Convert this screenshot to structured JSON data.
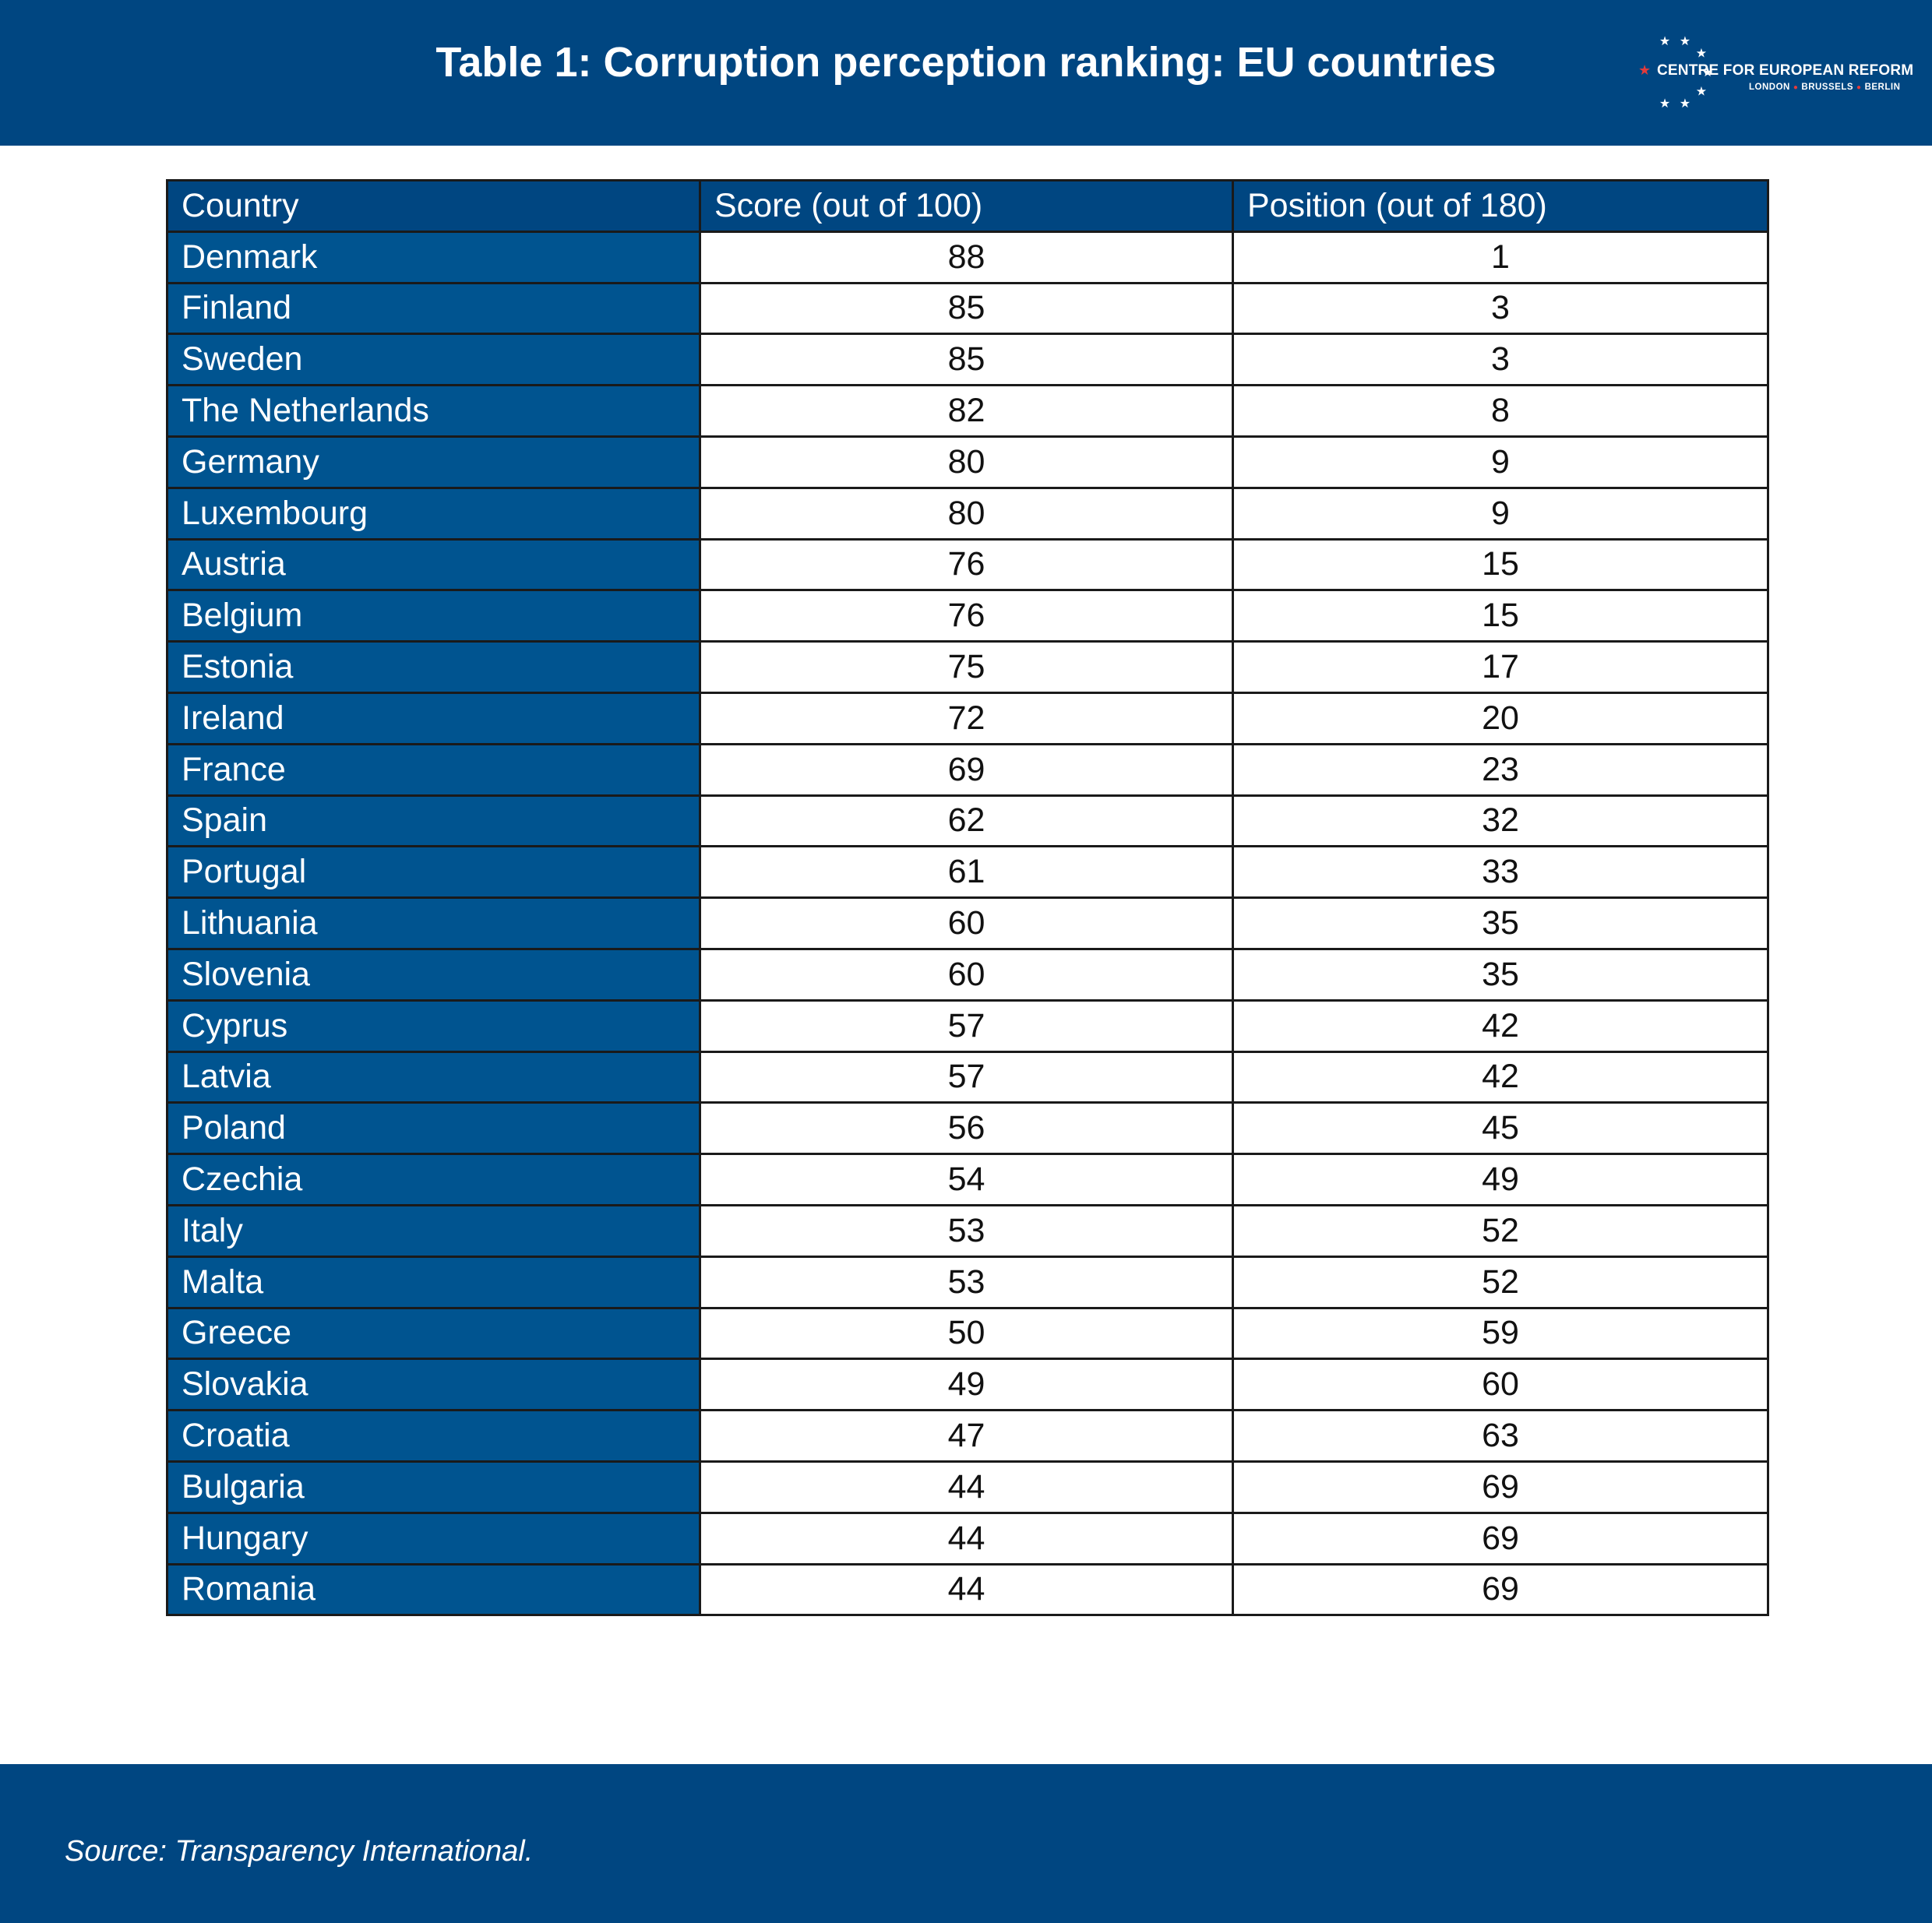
{
  "header": {
    "title": "Table 1: Corruption perception ranking: EU countries",
    "logo": {
      "name": "CENTRE FOR EUROPEAN REFORM",
      "cities": [
        "LONDON",
        "BRUSSELS",
        "BERLIN"
      ],
      "icon": "eu-star-circle-icon"
    }
  },
  "colors": {
    "header_bg": "#004681",
    "country_cell_bg": "#005490",
    "logo_accent": "#e33b3b"
  },
  "chart_data": {
    "type": "table",
    "title": "Table 1: Corruption perception ranking: EU countries",
    "columns": [
      "Country",
      "Score (out of 100)",
      "Position (out of 180)"
    ],
    "rows": [
      [
        "Denmark",
        "88",
        "1"
      ],
      [
        "Finland",
        "85",
        "3"
      ],
      [
        "Sweden",
        "85",
        "3"
      ],
      [
        "The Netherlands",
        "82",
        "8"
      ],
      [
        "Germany",
        "80",
        "9"
      ],
      [
        "Luxembourg",
        "80",
        "9"
      ],
      [
        "Austria",
        "76",
        "15"
      ],
      [
        "Belgium",
        "76",
        "15"
      ],
      [
        "Estonia",
        "75",
        "17"
      ],
      [
        "Ireland",
        "72",
        "20"
      ],
      [
        "France",
        "69",
        "23"
      ],
      [
        "Spain",
        "62",
        "32"
      ],
      [
        "Portugal",
        "61",
        "33"
      ],
      [
        "Lithuania",
        "60",
        "35"
      ],
      [
        "Slovenia",
        "60",
        "35"
      ],
      [
        "Cyprus",
        "57",
        "42"
      ],
      [
        "Latvia",
        "57",
        "42"
      ],
      [
        "Poland",
        "56",
        "45"
      ],
      [
        "Czechia",
        "54",
        "49"
      ],
      [
        "Italy",
        "53",
        "52"
      ],
      [
        "Malta",
        "53",
        "52"
      ],
      [
        "Greece",
        "50",
        "59"
      ],
      [
        "Slovakia",
        "49",
        "60"
      ],
      [
        "Croatia",
        "47",
        "63"
      ],
      [
        "Bulgaria",
        "44",
        "69"
      ],
      [
        "Hungary",
        "44",
        "69"
      ],
      [
        "Romania",
        "44",
        "69"
      ]
    ]
  },
  "footer": {
    "source": "Source: Transparency International."
  }
}
